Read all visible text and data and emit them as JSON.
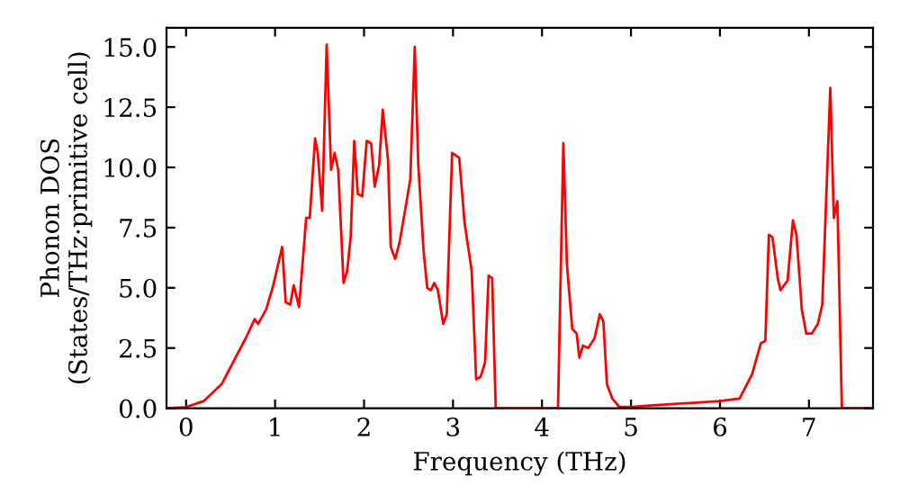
{
  "chart_data": {
    "type": "line",
    "xlabel": "Frequency (THz)",
    "ylabel": "Phonon DOS\n(States/THz·primitive cell)",
    "xlim": [
      -0.22,
      7.72
    ],
    "ylim": [
      0,
      15.8
    ],
    "xticks": [
      0,
      1,
      2,
      3,
      4,
      5,
      6,
      7
    ],
    "yticks": [
      {
        "value": 0,
        "label": "0.0"
      },
      {
        "value": 2.5,
        "label": "2.5"
      },
      {
        "value": 5,
        "label": "5.0"
      },
      {
        "value": 7.5,
        "label": "7.5"
      },
      {
        "value": 10,
        "label": "10.0"
      },
      {
        "value": 12.5,
        "label": "12.5"
      },
      {
        "value": 15,
        "label": "15.0"
      }
    ],
    "grid": false,
    "legend": false,
    "marker": "none",
    "line_style": "solid",
    "series": [
      {
        "color": "#ff0000",
        "x": [
          -0.21,
          0,
          0.2,
          0.4,
          0.57,
          0.67,
          0.77,
          0.81,
          0.9,
          0.98,
          1.08,
          1.12,
          1.17,
          1.21,
          1.27,
          1.35,
          1.39,
          1.45,
          1.48,
          1.53,
          1.58,
          1.63,
          1.67,
          1.71,
          1.77,
          1.81,
          1.85,
          1.89,
          1.93,
          1.98,
          2.03,
          2.08,
          2.12,
          2.17,
          2.21,
          2.27,
          2.3,
          2.35,
          2.4,
          2.47,
          2.52,
          2.57,
          2.61,
          2.67,
          2.71,
          2.75,
          2.79,
          2.83,
          2.89,
          2.93,
          2.99,
          3.07,
          3.13,
          3.21,
          3.26,
          3.31,
          3.36,
          3.4,
          3.44,
          3.48,
          4.18,
          4.24,
          4.28,
          4.34,
          4.39,
          4.42,
          4.46,
          4.52,
          4.59,
          4.65,
          4.69,
          4.73,
          4.79,
          4.87,
          4.98,
          5.17,
          6.0,
          6.22,
          6.36,
          6.46,
          6.51,
          6.55,
          6.59,
          6.65,
          6.68,
          6.76,
          6.82,
          6.86,
          6.92,
          6.97,
          7.03,
          7.1,
          7.15,
          7.24,
          7.28,
          7.32,
          7.37,
          7.72
        ],
        "values": [
          0,
          0.05,
          0.3,
          1.0,
          2.2,
          2.9,
          3.7,
          3.5,
          4.1,
          5.1,
          6.7,
          4.4,
          4.3,
          5.1,
          4.2,
          7.9,
          7.9,
          11.2,
          10.6,
          8.2,
          15.1,
          9.9,
          10.6,
          9.9,
          5.2,
          5.7,
          7.1,
          11.1,
          8.9,
          8.8,
          11.1,
          11.0,
          9.2,
          10.1,
          12.4,
          10.3,
          6.7,
          6.2,
          6.9,
          8.4,
          9.5,
          15.0,
          10.1,
          6.5,
          5.0,
          4.9,
          5.2,
          4.9,
          3.5,
          3.9,
          10.6,
          10.4,
          7.7,
          5.7,
          1.2,
          1.3,
          1.9,
          5.5,
          5.4,
          0,
          0,
          11.0,
          6.0,
          3.3,
          3.1,
          2.1,
          2.6,
          2.5,
          2.9,
          3.9,
          3.6,
          1.0,
          0.4,
          0.05,
          0.05,
          0.1,
          0.3,
          0.4,
          1.4,
          2.7,
          2.8,
          7.2,
          7.1,
          5.4,
          4.9,
          5.3,
          7.8,
          7.2,
          4.1,
          3.1,
          3.1,
          3.5,
          4.3,
          13.3,
          7.9,
          8.6,
          0,
          0
        ]
      }
    ]
  }
}
